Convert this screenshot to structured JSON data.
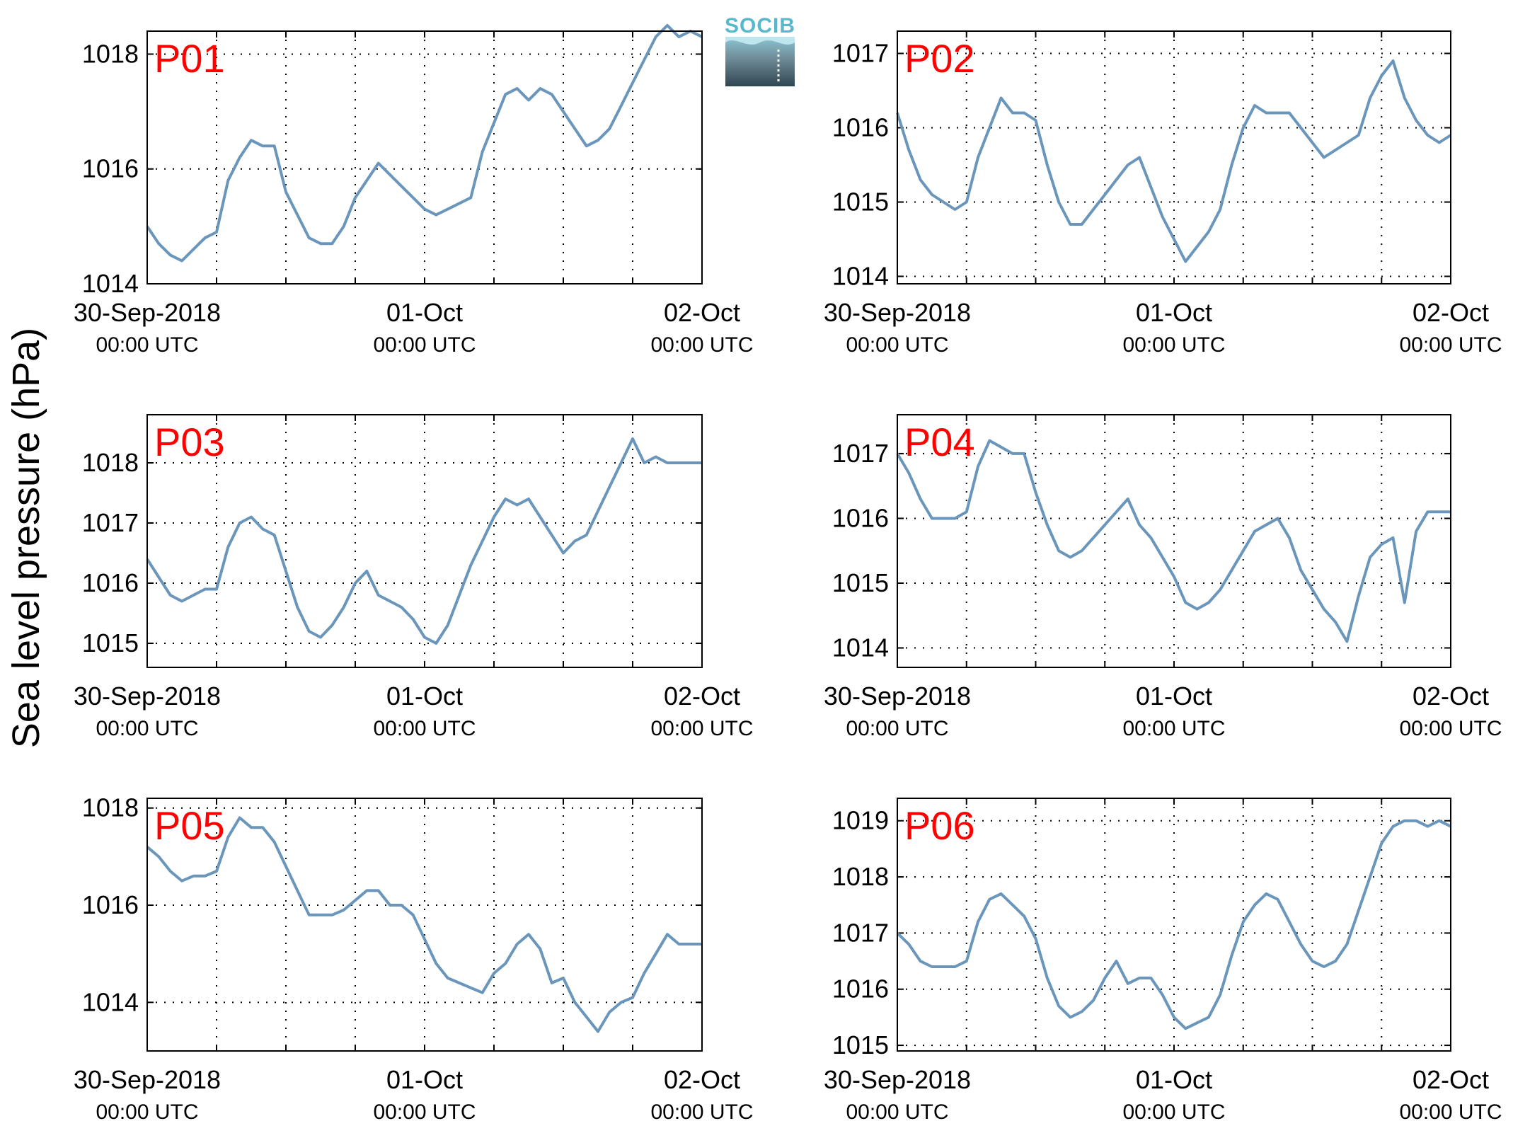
{
  "figure": {
    "ylabel": "Sea level pressure (hPa)",
    "logo_text": "SOCIB",
    "line_color": "#6a96bc",
    "title_color": "#ff0000"
  },
  "chart_data": [
    {
      "type": "line",
      "title": "P01",
      "x_range": [
        "30-Sep-2018 00:00 UTC",
        "02-Oct 00:00 UTC"
      ],
      "x_hours_range": [
        0,
        48
      ],
      "ylim": [
        1014,
        1018.4
      ],
      "yticks": [
        1014,
        1016,
        1018
      ],
      "xtick_labels": [
        {
          "line1": "30-Sep-2018",
          "line2": "00:00 UTC",
          "hour": 0
        },
        {
          "line1": "01-Oct",
          "line2": "00:00 UTC",
          "hour": 24
        },
        {
          "line1": "02-Oct",
          "line2": "00:00 UTC",
          "hour": 48
        }
      ],
      "grid": true,
      "series": [
        {
          "hours": [
            0,
            1,
            2,
            3,
            4,
            5,
            6,
            7,
            8,
            9,
            10,
            11,
            12,
            13,
            14,
            15,
            16,
            17,
            18,
            19,
            20,
            21,
            22,
            23,
            24,
            25,
            26,
            27,
            28,
            29,
            30,
            31,
            32,
            33,
            34,
            35,
            36,
            37,
            38,
            39,
            40,
            41,
            42,
            43,
            44,
            45,
            46,
            47,
            48
          ],
          "values": [
            1015.0,
            1014.7,
            1014.5,
            1014.4,
            1014.6,
            1014.8,
            1014.9,
            1015.8,
            1016.2,
            1016.5,
            1016.4,
            1016.4,
            1015.6,
            1015.2,
            1014.8,
            1014.7,
            1014.7,
            1015.0,
            1015.5,
            1015.8,
            1016.1,
            1015.9,
            1015.7,
            1015.5,
            1015.3,
            1015.2,
            1015.3,
            1015.4,
            1015.5,
            1016.3,
            1016.8,
            1017.3,
            1017.4,
            1017.2,
            1017.4,
            1017.3,
            1017.0,
            1016.7,
            1016.4,
            1016.5,
            1016.7,
            1017.1,
            1017.5,
            1017.9,
            1018.3,
            1018.5,
            1018.3,
            1018.4,
            1018.3
          ]
        }
      ]
    },
    {
      "type": "line",
      "title": "P02",
      "x_range": [
        "30-Sep-2018 00:00 UTC",
        "02-Oct 00:00 UTC"
      ],
      "x_hours_range": [
        0,
        48
      ],
      "ylim": [
        1013.9,
        1017.3
      ],
      "yticks": [
        1014,
        1015,
        1016,
        1017
      ],
      "xtick_labels": [
        {
          "line1": "30-Sep-2018",
          "line2": "00:00 UTC",
          "hour": 0
        },
        {
          "line1": "01-Oct",
          "line2": "00:00 UTC",
          "hour": 24
        },
        {
          "line1": "02-Oct",
          "line2": "00:00 UTC",
          "hour": 48
        }
      ],
      "grid": true,
      "series": [
        {
          "hours": [
            0,
            1,
            2,
            3,
            4,
            5,
            6,
            7,
            8,
            9,
            10,
            11,
            12,
            13,
            14,
            15,
            16,
            17,
            18,
            19,
            20,
            21,
            22,
            23,
            24,
            25,
            26,
            27,
            28,
            29,
            30,
            31,
            32,
            33,
            34,
            35,
            36,
            37,
            38,
            39,
            40,
            41,
            42,
            43,
            44,
            45,
            46,
            47,
            48
          ],
          "values": [
            1016.2,
            1015.7,
            1015.3,
            1015.1,
            1015.0,
            1014.9,
            1015.0,
            1015.6,
            1016.0,
            1016.4,
            1016.2,
            1016.2,
            1016.1,
            1015.5,
            1015.0,
            1014.7,
            1014.7,
            1014.9,
            1015.1,
            1015.3,
            1015.5,
            1015.6,
            1015.2,
            1014.8,
            1014.5,
            1014.2,
            1014.4,
            1014.6,
            1014.9,
            1015.5,
            1016.0,
            1016.3,
            1016.2,
            1016.2,
            1016.2,
            1016.0,
            1015.8,
            1015.6,
            1015.7,
            1015.8,
            1015.9,
            1016.4,
            1016.7,
            1016.9,
            1016.4,
            1016.1,
            1015.9,
            1015.8,
            1015.9
          ]
        }
      ]
    },
    {
      "type": "line",
      "title": "P03",
      "x_range": [
        "30-Sep-2018 00:00 UTC",
        "02-Oct 00:00 UTC"
      ],
      "x_hours_range": [
        0,
        48
      ],
      "ylim": [
        1014.6,
        1018.8
      ],
      "yticks": [
        1015,
        1016,
        1017,
        1018
      ],
      "xtick_labels": [
        {
          "line1": "30-Sep-2018",
          "line2": "00:00 UTC",
          "hour": 0
        },
        {
          "line1": "01-Oct",
          "line2": "00:00 UTC",
          "hour": 24
        },
        {
          "line1": "02-Oct",
          "line2": "00:00 UTC",
          "hour": 48
        }
      ],
      "grid": true,
      "series": [
        {
          "hours": [
            0,
            1,
            2,
            3,
            4,
            5,
            6,
            7,
            8,
            9,
            10,
            11,
            12,
            13,
            14,
            15,
            16,
            17,
            18,
            19,
            20,
            21,
            22,
            23,
            24,
            25,
            26,
            27,
            28,
            29,
            30,
            31,
            32,
            33,
            34,
            35,
            36,
            37,
            38,
            39,
            40,
            41,
            42,
            43,
            44,
            45,
            46,
            47,
            48
          ],
          "values": [
            1016.4,
            1016.1,
            1015.8,
            1015.7,
            1015.8,
            1015.9,
            1015.9,
            1016.6,
            1017.0,
            1017.1,
            1016.9,
            1016.8,
            1016.2,
            1015.6,
            1015.2,
            1015.1,
            1015.3,
            1015.6,
            1016.0,
            1016.2,
            1015.8,
            1015.7,
            1015.6,
            1015.4,
            1015.1,
            1015.0,
            1015.3,
            1015.8,
            1016.3,
            1016.7,
            1017.1,
            1017.4,
            1017.3,
            1017.4,
            1017.1,
            1016.8,
            1016.5,
            1016.7,
            1016.8,
            1017.2,
            1017.6,
            1018.0,
            1018.4,
            1018.0,
            1018.1,
            1018.0,
            1018.0,
            1018.0,
            1018.0
          ]
        }
      ]
    },
    {
      "type": "line",
      "title": "P04",
      "x_range": [
        "30-Sep-2018 00:00 UTC",
        "02-Oct 00:00 UTC"
      ],
      "x_hours_range": [
        0,
        48
      ],
      "ylim": [
        1013.7,
        1017.6
      ],
      "yticks": [
        1014,
        1015,
        1016,
        1017
      ],
      "xtick_labels": [
        {
          "line1": "30-Sep-2018",
          "line2": "00:00 UTC",
          "hour": 0
        },
        {
          "line1": "01-Oct",
          "line2": "00:00 UTC",
          "hour": 24
        },
        {
          "line1": "02-Oct",
          "line2": "00:00 UTC",
          "hour": 48
        }
      ],
      "grid": true,
      "series": [
        {
          "hours": [
            0,
            1,
            2,
            3,
            4,
            5,
            6,
            7,
            8,
            9,
            10,
            11,
            12,
            13,
            14,
            15,
            16,
            17,
            18,
            19,
            20,
            21,
            22,
            23,
            24,
            25,
            26,
            27,
            28,
            29,
            30,
            31,
            32,
            33,
            34,
            35,
            36,
            37,
            38,
            39,
            40,
            41,
            42,
            43,
            44,
            45,
            46,
            47,
            48
          ],
          "values": [
            1017.0,
            1016.7,
            1016.3,
            1016.0,
            1016.0,
            1016.0,
            1016.1,
            1016.8,
            1017.2,
            1017.1,
            1017.0,
            1017.0,
            1016.4,
            1015.9,
            1015.5,
            1015.4,
            1015.5,
            1015.7,
            1015.9,
            1016.1,
            1016.3,
            1015.9,
            1015.7,
            1015.4,
            1015.1,
            1014.7,
            1014.6,
            1014.7,
            1014.9,
            1015.2,
            1015.5,
            1015.8,
            1015.9,
            1016.0,
            1015.7,
            1015.2,
            1014.9,
            1014.6,
            1014.4,
            1014.1,
            1014.8,
            1015.4,
            1015.6,
            1015.7,
            1014.7,
            1015.8,
            1016.1,
            1016.1,
            1016.1
          ]
        }
      ]
    },
    {
      "type": "line",
      "title": "P05",
      "x_range": [
        "30-Sep-2018 00:00 UTC",
        "02-Oct 00:00 UTC"
      ],
      "x_hours_range": [
        0,
        48
      ],
      "ylim": [
        1013.0,
        1018.2
      ],
      "yticks": [
        1014,
        1016,
        1018
      ],
      "xtick_labels": [
        {
          "line1": "30-Sep-2018",
          "line2": "00:00 UTC",
          "hour": 0
        },
        {
          "line1": "01-Oct",
          "line2": "00:00 UTC",
          "hour": 24
        },
        {
          "line1": "02-Oct",
          "line2": "00:00 UTC",
          "hour": 48
        }
      ],
      "grid": true,
      "series": [
        {
          "hours": [
            0,
            1,
            2,
            3,
            4,
            5,
            6,
            7,
            8,
            9,
            10,
            11,
            12,
            13,
            14,
            15,
            16,
            17,
            18,
            19,
            20,
            21,
            22,
            23,
            24,
            25,
            26,
            27,
            28,
            29,
            30,
            31,
            32,
            33,
            34,
            35,
            36,
            37,
            38,
            39,
            40,
            41,
            42,
            43,
            44,
            45,
            46,
            47,
            48
          ],
          "values": [
            1017.2,
            1017.0,
            1016.7,
            1016.5,
            1016.6,
            1016.6,
            1016.7,
            1017.4,
            1017.8,
            1017.6,
            1017.6,
            1017.3,
            1016.8,
            1016.3,
            1015.8,
            1015.8,
            1015.8,
            1015.9,
            1016.1,
            1016.3,
            1016.3,
            1016.0,
            1016.0,
            1015.8,
            1015.3,
            1014.8,
            1014.5,
            1014.4,
            1014.3,
            1014.2,
            1014.6,
            1014.8,
            1015.2,
            1015.4,
            1015.1,
            1014.4,
            1014.5,
            1014.0,
            1013.7,
            1013.4,
            1013.8,
            1014.0,
            1014.1,
            1014.6,
            1015.0,
            1015.4,
            1015.2,
            1015.2,
            1015.2
          ]
        }
      ]
    },
    {
      "type": "line",
      "title": "P06",
      "x_range": [
        "30-Sep-2018 00:00 UTC",
        "02-Oct 00:00 UTC"
      ],
      "x_hours_range": [
        0,
        48
      ],
      "ylim": [
        1014.9,
        1019.4
      ],
      "yticks": [
        1015,
        1016,
        1017,
        1018,
        1019
      ],
      "xtick_labels": [
        {
          "line1": "30-Sep-2018",
          "line2": "00:00 UTC",
          "hour": 0
        },
        {
          "line1": "01-Oct",
          "line2": "00:00 UTC",
          "hour": 24
        },
        {
          "line1": "02-Oct",
          "line2": "00:00 UTC",
          "hour": 48
        }
      ],
      "grid": true,
      "series": [
        {
          "hours": [
            0,
            1,
            2,
            3,
            4,
            5,
            6,
            7,
            8,
            9,
            10,
            11,
            12,
            13,
            14,
            15,
            16,
            17,
            18,
            19,
            20,
            21,
            22,
            23,
            24,
            25,
            26,
            27,
            28,
            29,
            30,
            31,
            32,
            33,
            34,
            35,
            36,
            37,
            38,
            39,
            40,
            41,
            42,
            43,
            44,
            45,
            46,
            47,
            48
          ],
          "values": [
            1017.0,
            1016.8,
            1016.5,
            1016.4,
            1016.4,
            1016.4,
            1016.5,
            1017.2,
            1017.6,
            1017.7,
            1017.5,
            1017.3,
            1016.9,
            1016.2,
            1015.7,
            1015.5,
            1015.6,
            1015.8,
            1016.2,
            1016.5,
            1016.1,
            1016.2,
            1016.2,
            1015.9,
            1015.5,
            1015.3,
            1015.4,
            1015.5,
            1015.9,
            1016.6,
            1017.2,
            1017.5,
            1017.7,
            1017.6,
            1017.2,
            1016.8,
            1016.5,
            1016.4,
            1016.5,
            1016.8,
            1017.4,
            1018.0,
            1018.6,
            1018.9,
            1019.0,
            1019.0,
            1018.9,
            1019.0,
            1018.9
          ]
        }
      ]
    }
  ]
}
